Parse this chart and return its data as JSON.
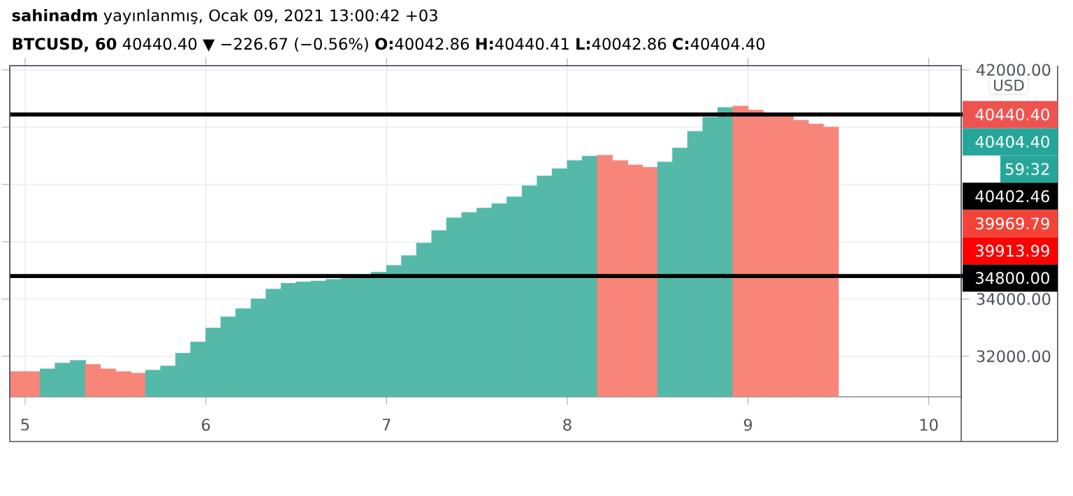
{
  "chart_data": {
    "type": "bar",
    "title": "**sahinadm** yayınlanmış, Ocak 09, 2021 13:00:42 +03",
    "subtitle": "**BTCUSD, 60** 40440.40 ▼ −226.67 (−0.56%) **O:**40042.86 **H:**40440.41 **L:**40042.86 **C:**40404.40",
    "x": [
      4.958,
      5.042,
      5.125,
      5.208,
      5.292,
      5.375,
      5.458,
      5.542,
      5.625,
      5.708,
      5.792,
      5.875,
      5.958,
      6.042,
      6.125,
      6.208,
      6.292,
      6.375,
      6.458,
      6.542,
      6.625,
      6.708,
      6.792,
      6.875,
      6.958,
      7.042,
      7.125,
      7.208,
      7.292,
      7.375,
      7.458,
      7.542,
      7.625,
      7.708,
      7.792,
      7.875,
      7.958,
      8.042,
      8.125,
      8.208,
      8.292,
      8.375,
      8.458,
      8.542,
      8.625,
      8.708,
      8.792,
      8.875,
      8.958,
      9.042,
      9.125,
      9.208,
      9.292,
      9.375,
      9.458
    ],
    "values": [
      31460,
      31460,
      31560,
      31760,
      31850,
      31710,
      31560,
      31460,
      31410,
      31510,
      31660,
      32100,
      32490,
      32980,
      33370,
      33660,
      34000,
      34340,
      34540,
      34590,
      34630,
      34680,
      34730,
      34780,
      34930,
      35170,
      35510,
      35950,
      36390,
      36830,
      37020,
      37170,
      37320,
      37560,
      37950,
      38290,
      38540,
      38830,
      38980,
      39020,
      38830,
      38680,
      38590,
      38780,
      39270,
      39850,
      40340,
      40680,
      40730,
      40590,
      40490,
      40390,
      40240,
      40100,
      40000
    ],
    "colors": [
      "#f7857a",
      "#f7857a",
      "#55b9a9",
      "#55b9a9",
      "#55b9a9",
      "#f7857a",
      "#f7857a",
      "#f7857a",
      "#f7857a",
      "#55b9a9",
      "#55b9a9",
      "#55b9a9",
      "#55b9a9",
      "#55b9a9",
      "#55b9a9",
      "#55b9a9",
      "#55b9a9",
      "#55b9a9",
      "#55b9a9",
      "#55b9a9",
      "#55b9a9",
      "#55b9a9",
      "#55b9a9",
      "#55b9a9",
      "#55b9a9",
      "#55b9a9",
      "#55b9a9",
      "#55b9a9",
      "#55b9a9",
      "#55b9a9",
      "#55b9a9",
      "#55b9a9",
      "#55b9a9",
      "#55b9a9",
      "#55b9a9",
      "#55b9a9",
      "#55b9a9",
      "#55b9a9",
      "#55b9a9",
      "#f7857a",
      "#f7857a",
      "#f7857a",
      "#f7857a",
      "#55b9a9",
      "#55b9a9",
      "#55b9a9",
      "#55b9a9",
      "#55b9a9",
      "#f7857a",
      "#f7857a",
      "#f7857a",
      "#f7857a",
      "#f7857a",
      "#f7857a",
      "#f7857a"
    ],
    "xlim": [
      4.915,
      10.18
    ],
    "ylim": [
      30585,
      42146
    ],
    "xticks": [
      5,
      6,
      7,
      8,
      9,
      10
    ],
    "yticks": [
      {
        "value": 32000,
        "label": "32000.00"
      },
      {
        "value": 34000,
        "label": "34000.00"
      },
      {
        "value": 36000,
        "label": null
      },
      {
        "value": 38000,
        "label": null
      },
      {
        "value": 40000,
        "label": null
      },
      {
        "value": 42000,
        "label": "42000.00"
      }
    ],
    "grid": true,
    "ref_lines": [
      {
        "axis": "y",
        "value": 40440.4,
        "label": "40440.40",
        "color": "#000000"
      },
      {
        "axis": "y",
        "value": 34800,
        "label": "34800.00",
        "color": "#000000"
      }
    ],
    "annotations": [
      "USD",
      "40404.40",
      "59:32",
      "40402.46",
      "39969.79",
      "39913.99"
    ]
  }
}
